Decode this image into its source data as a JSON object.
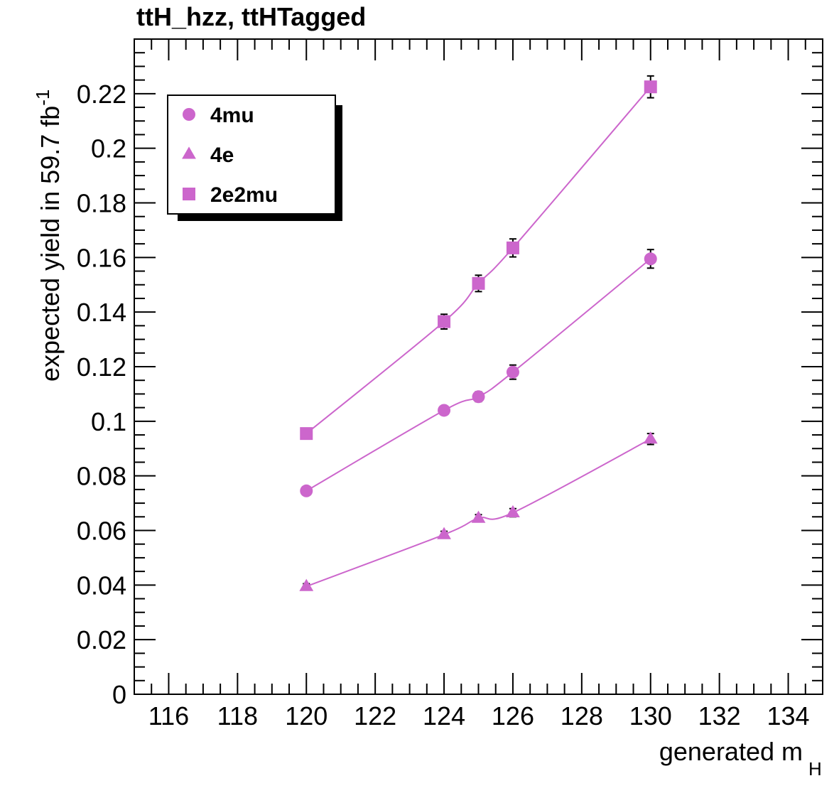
{
  "chart_data": {
    "type": "line",
    "title": "ttH_hzz, ttHTagged",
    "xlabel": "generated m",
    "xlabel_sub": "H",
    "ylabel": "expected yield in 59.7 fb",
    "ylabel_sup": "-1",
    "xlim": [
      115,
      135
    ],
    "ylim": [
      0,
      0.24
    ],
    "xticks": [
      "116",
      "118",
      "120",
      "122",
      "124",
      "126",
      "128",
      "130",
      "132",
      "134"
    ],
    "yticks": [
      "0",
      "0.02",
      "0.04",
      "0.06",
      "0.08",
      "0.1",
      "0.12",
      "0.14",
      "0.16",
      "0.18",
      "0.2",
      "0.22"
    ],
    "grid": false,
    "legend_position": "top-left",
    "color": "#cc66cc",
    "x": [
      120,
      124,
      125,
      126,
      130
    ],
    "series": [
      {
        "name": "4mu",
        "marker": "circle",
        "values": [
          0.0745,
          0.104,
          0.109,
          0.118,
          0.1595
        ],
        "errors": [
          0.0012,
          0.0016,
          0.0018,
          0.0026,
          0.0034
        ]
      },
      {
        "name": "4e",
        "marker": "triangle",
        "values": [
          0.0395,
          0.0585,
          0.0645,
          0.0665,
          0.0935
        ],
        "errors": [
          0.001,
          0.0012,
          0.0013,
          0.0015,
          0.002
        ]
      },
      {
        "name": "2e2mu",
        "marker": "square",
        "values": [
          0.0955,
          0.1365,
          0.1505,
          0.1635,
          0.2225
        ],
        "errors": [
          0.0015,
          0.0027,
          0.003,
          0.0033,
          0.004
        ]
      }
    ]
  }
}
